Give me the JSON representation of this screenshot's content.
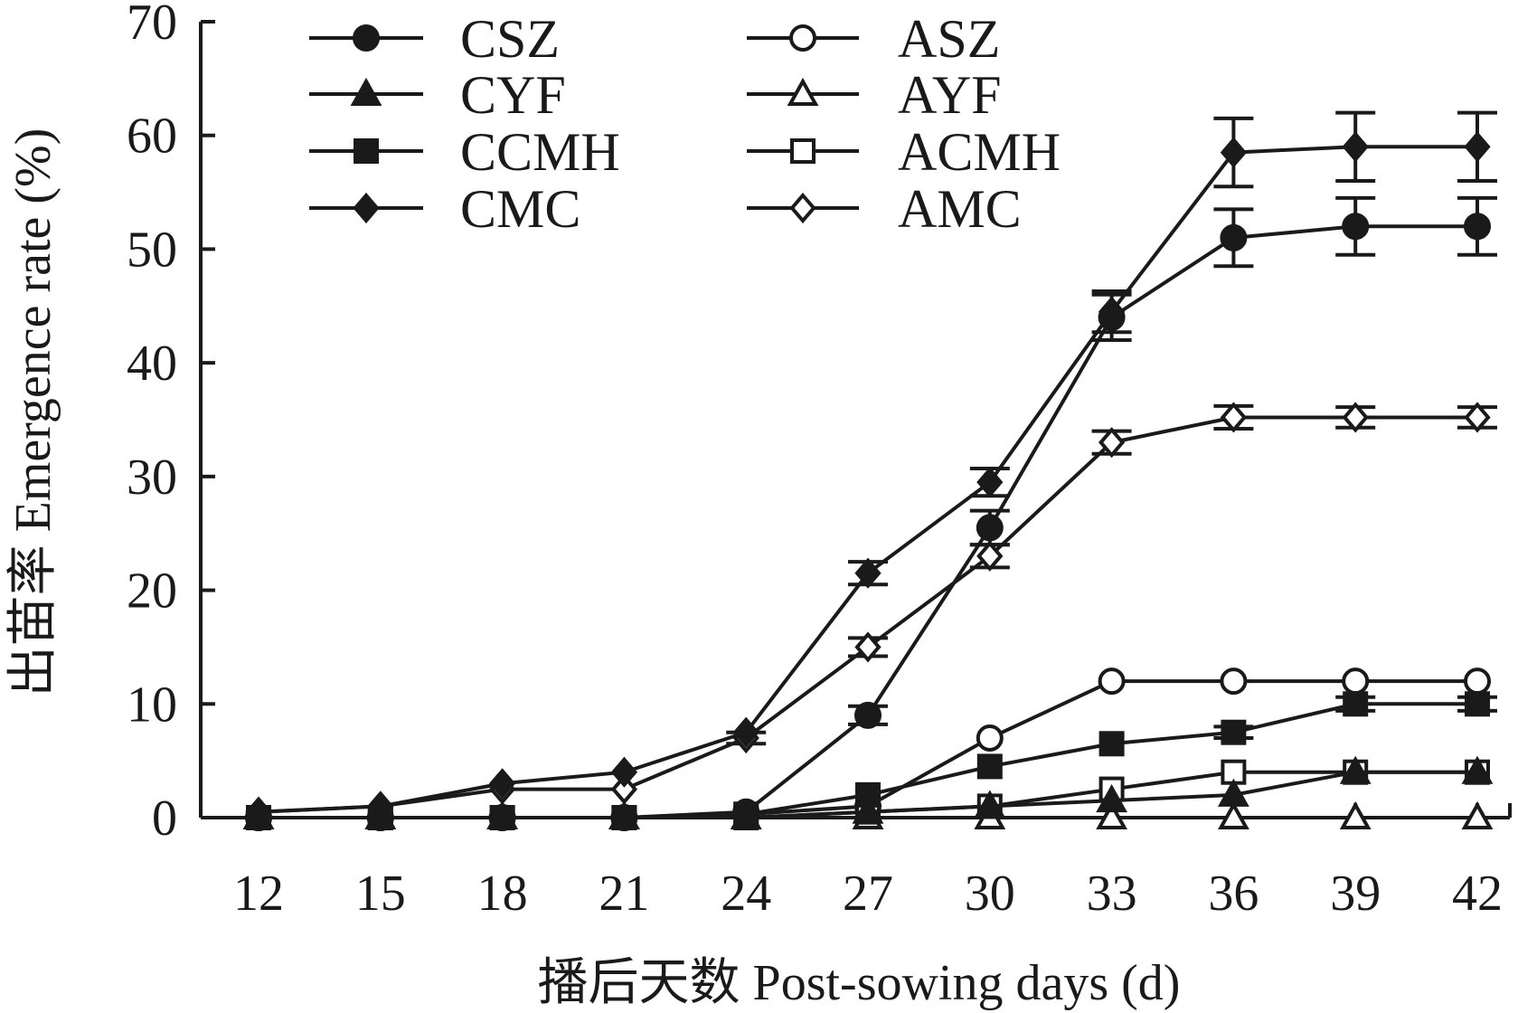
{
  "chart_data": {
    "type": "line",
    "title": "",
    "xlabel": "播后天数 Post-sowing days (d)",
    "ylabel": "出苗率 Emergence rate (%)",
    "x": [
      12,
      15,
      18,
      21,
      24,
      27,
      30,
      33,
      36,
      39,
      42
    ],
    "x_tick_labels": [
      "12",
      "15",
      "18",
      "21",
      "24",
      "27",
      "30",
      "33",
      "36",
      "39",
      "42"
    ],
    "y_ticks": [
      0,
      10,
      20,
      30,
      40,
      50,
      60,
      70
    ],
    "y_tick_labels": [
      "0",
      "10",
      "20",
      "30",
      "40",
      "50",
      "60",
      "70"
    ],
    "ylim": [
      0,
      70
    ],
    "grid": false,
    "legend_position": "top-left",
    "line_color": "#1a1a1a",
    "series": [
      {
        "name": "CSZ",
        "marker": "circle",
        "filled": true,
        "values": [
          0,
          0,
          0,
          0,
          0.5,
          9,
          25.5,
          44,
          51,
          52,
          52
        ],
        "errors": [
          0,
          0,
          0,
          0,
          0,
          0.8,
          1.5,
          2.0,
          2.5,
          2.5,
          2.5
        ]
      },
      {
        "name": "ASZ",
        "marker": "circle",
        "filled": false,
        "values": [
          0,
          0,
          0,
          0,
          0.3,
          1,
          7,
          12,
          12,
          12,
          12
        ],
        "errors": [
          0,
          0,
          0,
          0,
          0,
          0,
          0,
          0,
          0,
          0,
          0
        ]
      },
      {
        "name": "CYF",
        "marker": "triangle",
        "filled": true,
        "values": [
          0,
          0,
          0,
          0,
          0,
          0.5,
          1,
          1.5,
          2,
          4,
          4
        ],
        "errors": [
          0,
          0,
          0,
          0,
          0,
          0,
          0,
          0,
          0,
          0,
          0
        ]
      },
      {
        "name": "AYF",
        "marker": "triangle",
        "filled": false,
        "values": [
          0,
          0,
          0,
          0,
          0,
          0,
          0,
          0,
          0,
          0,
          0
        ],
        "errors": [
          0,
          0,
          0,
          0,
          0,
          0,
          0,
          0,
          0,
          0,
          0
        ]
      },
      {
        "name": "CCMH",
        "marker": "square",
        "filled": true,
        "values": [
          0,
          0,
          0,
          0,
          0.3,
          2,
          4.5,
          6.5,
          7.5,
          10,
          10
        ],
        "errors": [
          0,
          0,
          0,
          0,
          0,
          0,
          0,
          0,
          0.5,
          0.6,
          0.6
        ]
      },
      {
        "name": "ACMH",
        "marker": "square",
        "filled": false,
        "values": [
          0,
          0,
          0,
          0,
          0,
          0.5,
          1,
          2.5,
          4,
          4,
          4
        ],
        "errors": [
          0,
          0,
          0,
          0,
          0,
          0,
          0,
          0,
          0,
          0,
          0
        ]
      },
      {
        "name": "CMC",
        "marker": "diamond",
        "filled": true,
        "values": [
          0.5,
          1,
          3,
          4,
          7.5,
          21.5,
          29.5,
          44.5,
          58.5,
          59,
          59
        ],
        "errors": [
          0,
          0,
          0,
          0,
          0,
          1.0,
          1.2,
          1.8,
          3.0,
          3.0,
          3.0
        ]
      },
      {
        "name": "AMC",
        "marker": "diamond",
        "filled": false,
        "values": [
          0.5,
          1,
          2.5,
          2.5,
          7,
          15,
          23,
          33,
          35.2,
          35.2,
          35.2
        ],
        "errors": [
          0,
          0,
          0,
          0,
          0.5,
          0.8,
          1.0,
          1.0,
          1.0,
          0.9,
          0.9
        ]
      }
    ]
  }
}
